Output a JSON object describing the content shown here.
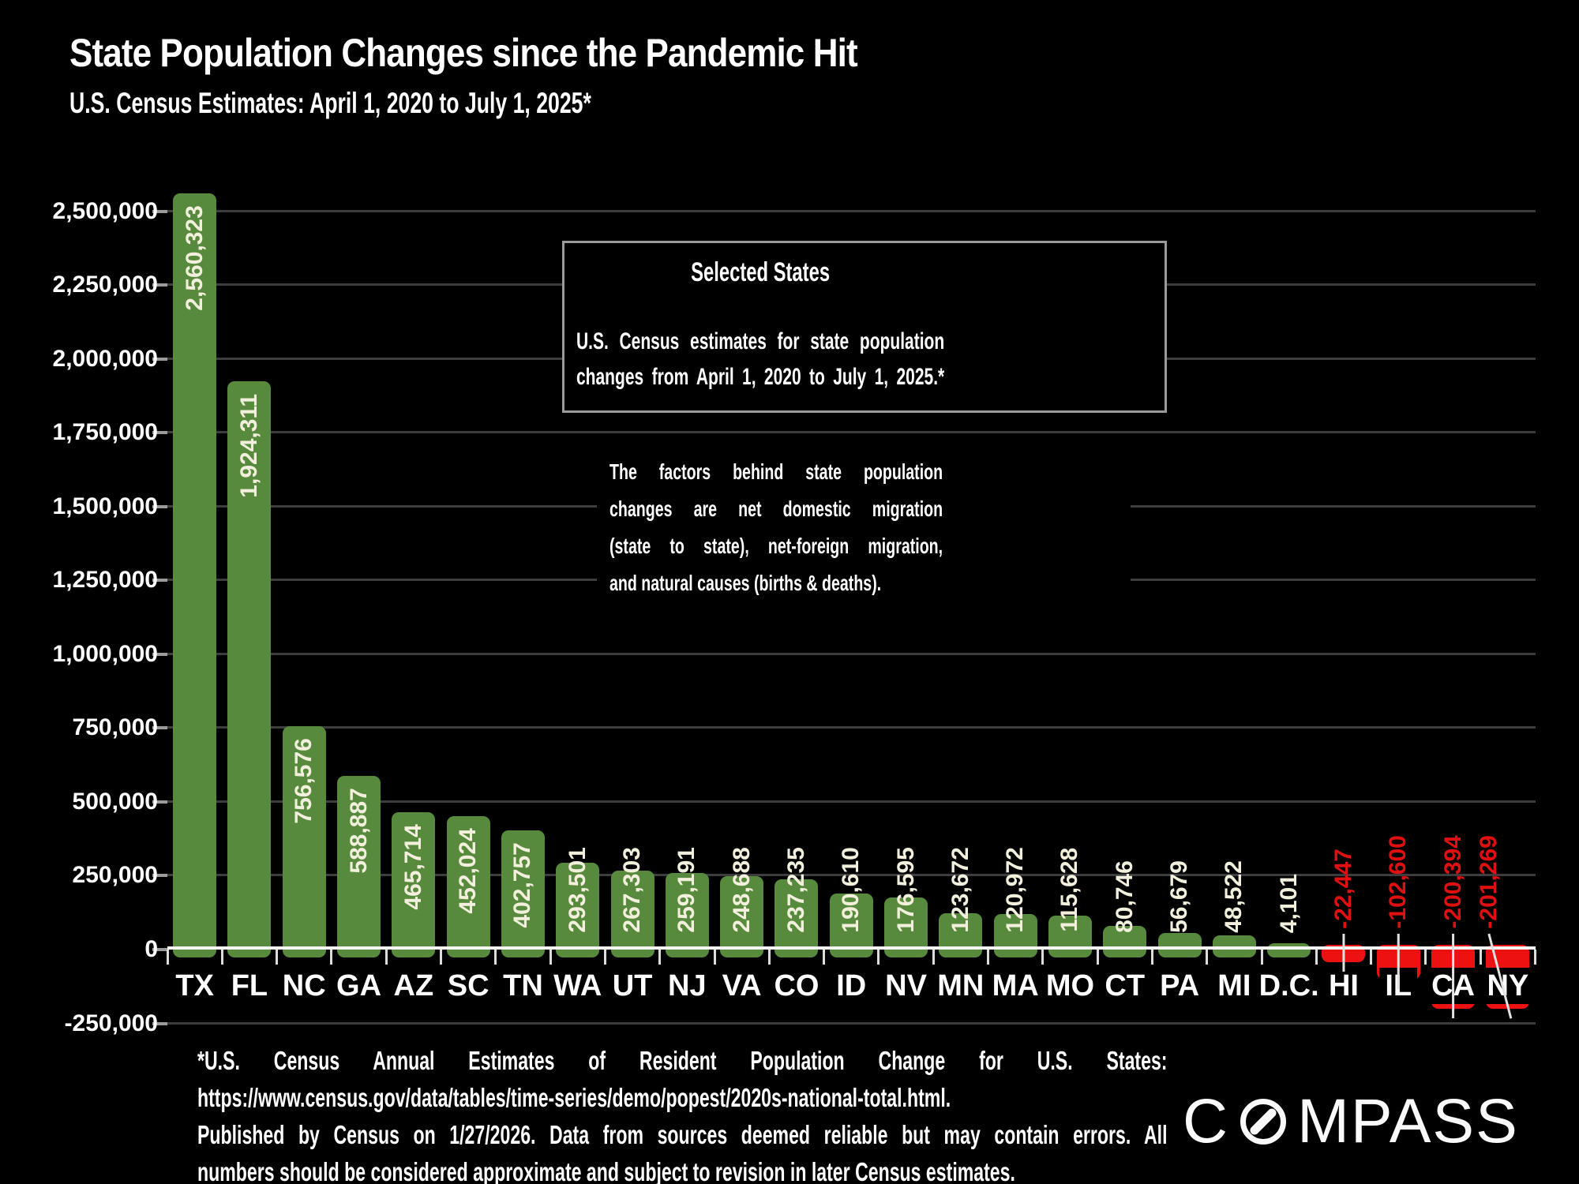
{
  "title": "State Population Changes since the Pandemic Hit",
  "subtitle": "U.S. Census Estimates: April 1, 2020 to July 1, 2025*",
  "info_box": {
    "title": "Selected States",
    "lines": [
      "U.S. Census estimates for state population",
      "changes from April 1, 2020 to July 1, 2025.*"
    ]
  },
  "note_paragraph": {
    "lines": [
      "The factors behind state population",
      "changes are net domestic migration",
      "(state to state), net-foreign migration,",
      "and natural causes (births & deaths)."
    ]
  },
  "footnote": {
    "lines": [
      "*U.S. Census Annual Estimates of Resident Population Change for U.S. States:",
      "https://www.census.gov/data/tables/time-series/demo/popest/2020s-national-total.html.",
      "Published by Census on 1/27/2026. Data from sources deemed reliable but may contain errors. All",
      "numbers should be considered approximate and subject to revision in later Census estimates."
    ]
  },
  "logo": {
    "text": "COMPASS"
  },
  "chart_data": {
    "type": "bar",
    "title": "State Population Changes since the Pandemic Hit",
    "subtitle": "U.S. Census Estimates: April 1, 2020 to July 1, 2025*",
    "categories": [
      "TX",
      "FL",
      "NC",
      "GA",
      "AZ",
      "SC",
      "TN",
      "WA",
      "UT",
      "NJ",
      "VA",
      "CO",
      "ID",
      "NV",
      "MN",
      "MA",
      "MO",
      "CT",
      "PA",
      "MI",
      "D.C.",
      "HI",
      "IL",
      "CA",
      "NY"
    ],
    "values": [
      2560323,
      1924311,
      756576,
      588887,
      465714,
      452024,
      402757,
      293501,
      267303,
      259191,
      248688,
      237235,
      190610,
      176595,
      123672,
      120972,
      115628,
      80746,
      56679,
      48522,
      4101,
      -22447,
      -102600,
      -200394,
      -201269
    ],
    "xlabel": "",
    "ylabel": "",
    "ylim": [
      -250000,
      2500000
    ],
    "ytick_step": 250000,
    "grid": true,
    "legend": false,
    "value_labels": "on-bar-rotated",
    "colors": {
      "positive_bar": "#588a3d",
      "negative_bar": "#ee1111",
      "positive_value_label": "#f2efdc",
      "negative_value_label": "#e01010",
      "background": "#000000",
      "gridline": "#3d3d3d",
      "axis_line": "#f4f4f4",
      "tick_label": "#ffffff"
    }
  }
}
